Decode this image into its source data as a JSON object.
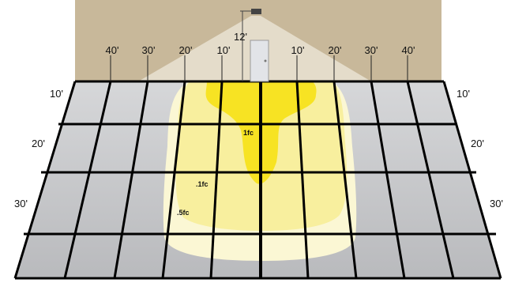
{
  "wall": {
    "color": "#c8b89a",
    "mount_height": "12'",
    "top_distances": [
      "40'",
      "30'",
      "20'",
      "10'",
      "10'",
      "20'",
      "30'",
      "40'"
    ]
  },
  "floor": {
    "side_distances_left": [
      "10'",
      "20'",
      "30'"
    ],
    "side_distances_right": [
      "10'",
      "20'",
      "30'"
    ],
    "tile_color": "#c9cacc",
    "grid_line_color": "#000000"
  },
  "isolux": {
    "contours": [
      {
        "label": ".5fc",
        "color": "#fbf7d4"
      },
      {
        "label": ".1fc",
        "color": "#f8ef9e"
      },
      {
        "label": "1fc",
        "color": "#f7e323"
      }
    ]
  },
  "fixture": {
    "beam_color": "#e9e2d2",
    "door_color": "#e2e4e8"
  }
}
